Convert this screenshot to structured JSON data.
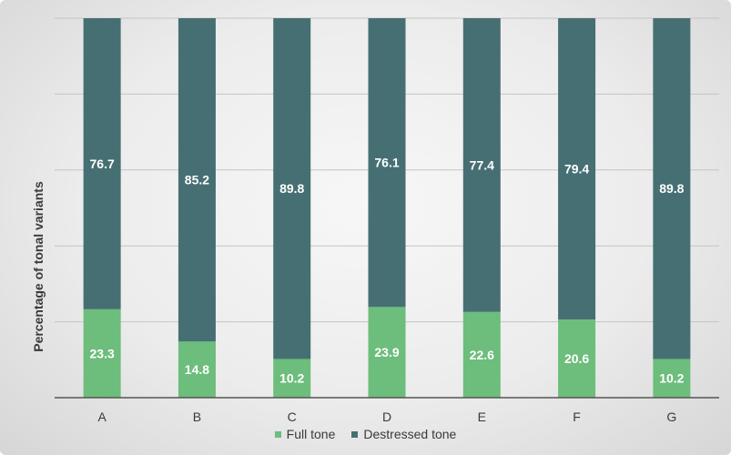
{
  "chart_data": {
    "type": "bar",
    "stacked": true,
    "categories": [
      "A",
      "B",
      "C",
      "D",
      "E",
      "F",
      "G"
    ],
    "series": [
      {
        "name": "Full tone",
        "color": "#6dbd7c",
        "values": [
          23.3,
          14.8,
          10.2,
          23.9,
          22.6,
          20.6,
          10.2
        ]
      },
      {
        "name": "Destressed tone",
        "color": "#466f73",
        "values": [
          76.7,
          85.2,
          89.8,
          76.1,
          77.4,
          79.4,
          89.8
        ]
      }
    ],
    "ylabel": "Percentage of tonal variants",
    "ylim": [
      0,
      100
    ],
    "grid": true,
    "legend": "bottom"
  }
}
